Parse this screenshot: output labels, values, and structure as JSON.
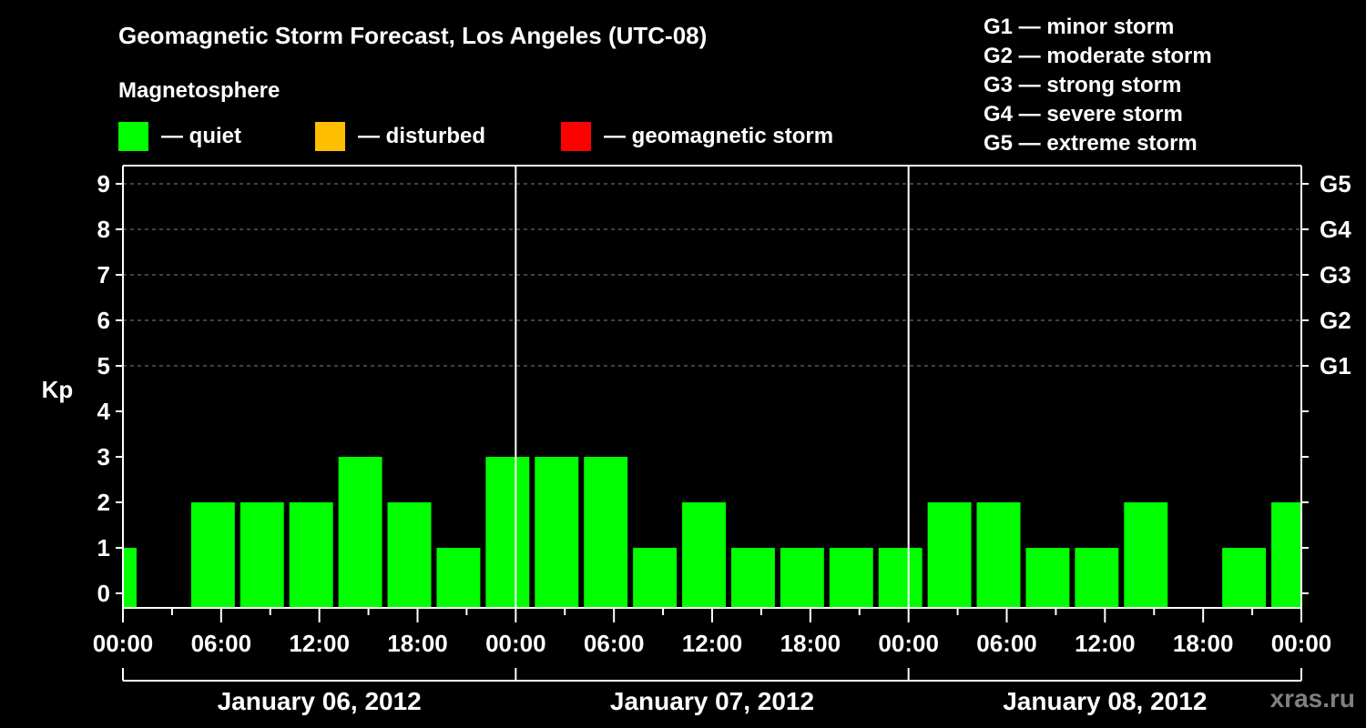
{
  "header": {
    "title": "Geomagnetic Storm Forecast, Los Angeles (UTC-08)",
    "subtitle": "Magnetosphere"
  },
  "legend": [
    {
      "label": "— quiet",
      "color": "#00ff00"
    },
    {
      "label": "— disturbed",
      "color": "#ffbf00"
    },
    {
      "label": "— geomagnetic storm",
      "color": "#ff0000"
    }
  ],
  "g_scale": [
    "G1 — minor storm",
    "G2 — moderate storm",
    "G3 — strong storm",
    "G4 — severe storm",
    "G5 — extreme storm"
  ],
  "watermark": "xras.ru",
  "chart_data": {
    "type": "bar",
    "title": "Geomagnetic Storm Forecast, Los Angeles (UTC-08)",
    "ylabel": "Kp",
    "xlabel": "",
    "ylim": [
      0,
      9
    ],
    "yticks": [
      0,
      1,
      2,
      3,
      4,
      5,
      6,
      7,
      8,
      9
    ],
    "right_axis_labels": [
      {
        "kp": 5,
        "label": "G1"
      },
      {
        "kp": 6,
        "label": "G2"
      },
      {
        "kp": 7,
        "label": "G3"
      },
      {
        "kp": 8,
        "label": "G4"
      },
      {
        "kp": 9,
        "label": "G5"
      }
    ],
    "x_tick_labels": [
      "00:00",
      "06:00",
      "12:00",
      "18:00",
      "00:00",
      "06:00",
      "12:00",
      "18:00",
      "00:00",
      "06:00",
      "12:00",
      "18:00",
      "00:00"
    ],
    "days": [
      "January 06, 2012",
      "January 07, 2012",
      "January 08, 2012"
    ],
    "grid": "dashed horizontal at Kp 5-9",
    "bar_color": "#00ff00",
    "bars": [
      {
        "start_h": 0,
        "end_h": 1,
        "kp": 1
      },
      {
        "start_h": 1,
        "end_h": 4,
        "kp": 0
      },
      {
        "start_h": 4,
        "end_h": 7,
        "kp": 2
      },
      {
        "start_h": 7,
        "end_h": 10,
        "kp": 2
      },
      {
        "start_h": 10,
        "end_h": 13,
        "kp": 2
      },
      {
        "start_h": 13,
        "end_h": 16,
        "kp": 3
      },
      {
        "start_h": 16,
        "end_h": 19,
        "kp": 2
      },
      {
        "start_h": 19,
        "end_h": 22,
        "kp": 1
      },
      {
        "start_h": 22,
        "end_h": 25,
        "kp": 3
      },
      {
        "start_h": 25,
        "end_h": 28,
        "kp": 3
      },
      {
        "start_h": 28,
        "end_h": 31,
        "kp": 3
      },
      {
        "start_h": 31,
        "end_h": 34,
        "kp": 1
      },
      {
        "start_h": 34,
        "end_h": 37,
        "kp": 2
      },
      {
        "start_h": 37,
        "end_h": 40,
        "kp": 1
      },
      {
        "start_h": 40,
        "end_h": 43,
        "kp": 1
      },
      {
        "start_h": 43,
        "end_h": 46,
        "kp": 1
      },
      {
        "start_h": 46,
        "end_h": 49,
        "kp": 1
      },
      {
        "start_h": 49,
        "end_h": 52,
        "kp": 2
      },
      {
        "start_h": 52,
        "end_h": 55,
        "kp": 2
      },
      {
        "start_h": 55,
        "end_h": 58,
        "kp": 1
      },
      {
        "start_h": 58,
        "end_h": 61,
        "kp": 1
      },
      {
        "start_h": 61,
        "end_h": 64,
        "kp": 2
      },
      {
        "start_h": 64,
        "end_h": 67,
        "kp": 0
      },
      {
        "start_h": 67,
        "end_h": 70,
        "kp": 1
      },
      {
        "start_h": 70,
        "end_h": 72,
        "kp": 2
      }
    ]
  }
}
